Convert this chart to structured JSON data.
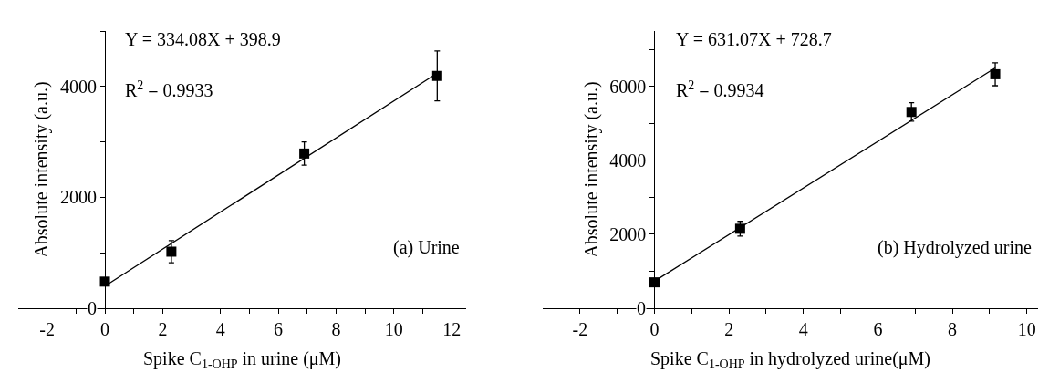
{
  "chart_data": [
    {
      "type": "scatter",
      "xlabel": "Spike C$_{1-OHP}$ in urine (μM)",
      "ylabel": "Absolute intensity (a.u.)",
      "annotations": [
        "Y = 334.08X + 398.9",
        "R$^{2}$ = 0.9933",
        "(a) Urine"
      ],
      "xlim": [
        -3,
        12.5
      ],
      "xticks": [
        -2,
        {
          "value": -1,
          "label": null
        },
        0,
        {
          "value": 1,
          "label": null
        },
        2,
        {
          "value": 3,
          "label": null
        },
        4,
        {
          "value": 5,
          "label": null
        },
        6,
        {
          "value": 7,
          "label": null
        },
        8,
        {
          "value": 9,
          "label": null
        },
        10,
        {
          "value": 11,
          "label": null
        },
        12
      ],
      "ylim": [
        0,
        5000
      ],
      "yticks": [
        0,
        {
          "value": 1000,
          "label": null
        },
        2000,
        {
          "value": 3000,
          "label": null
        },
        4000,
        {
          "value": 5000,
          "label": null
        }
      ],
      "series": [
        {
          "type": "scatter",
          "color": "#000000",
          "marker": "square",
          "x": [
            0,
            2.3,
            6.9,
            11.5
          ],
          "values": [
            480,
            1020,
            2790,
            4190
          ],
          "errors": [
            null,
            200,
            210,
            450
          ]
        },
        {
          "type": "line",
          "color": "#000000",
          "marker": "none",
          "line_style": "solid",
          "x": [
            0,
            11.5
          ],
          "values": [
            400,
            4240
          ]
        }
      ]
    },
    {
      "type": "scatter",
      "xlabel": "Spike C$_{1-OHP}$ in hydrolyzed urine(μM)",
      "ylabel": "Absolute intensity (a.u.)",
      "annotations": [
        "Y = 631.07X + 728.7",
        "R$^{2}$ = 0.9934",
        "(b) Hydrolyzed urine"
      ],
      "xlim": [
        -3,
        10.3
      ],
      "xticks": [
        -2,
        {
          "value": -1,
          "label": null
        },
        0,
        {
          "value": 1,
          "label": null
        },
        2,
        {
          "value": 3,
          "label": null
        },
        4,
        {
          "value": 5,
          "label": null
        },
        6,
        {
          "value": 7,
          "label": null
        },
        8,
        {
          "value": 9,
          "label": null
        },
        10
      ],
      "ylim": [
        0,
        7500
      ],
      "yticks": [
        0,
        {
          "value": 1000,
          "label": null
        },
        2000,
        {
          "value": 3000,
          "label": null
        },
        4000,
        {
          "value": 5000,
          "label": null
        },
        6000,
        {
          "value": 7000,
          "label": null
        }
      ],
      "series": [
        {
          "type": "scatter",
          "color": "#000000",
          "marker": "square",
          "x": [
            0,
            2.3,
            6.9,
            9.15
          ],
          "values": [
            700,
            2150,
            5310,
            6330
          ],
          "errors": [
            null,
            200,
            250,
            310
          ]
        },
        {
          "type": "line",
          "color": "#000000",
          "marker": "none",
          "line_style": "solid",
          "x": [
            0,
            9.15
          ],
          "values": [
            730,
            6500
          ]
        }
      ]
    }
  ]
}
